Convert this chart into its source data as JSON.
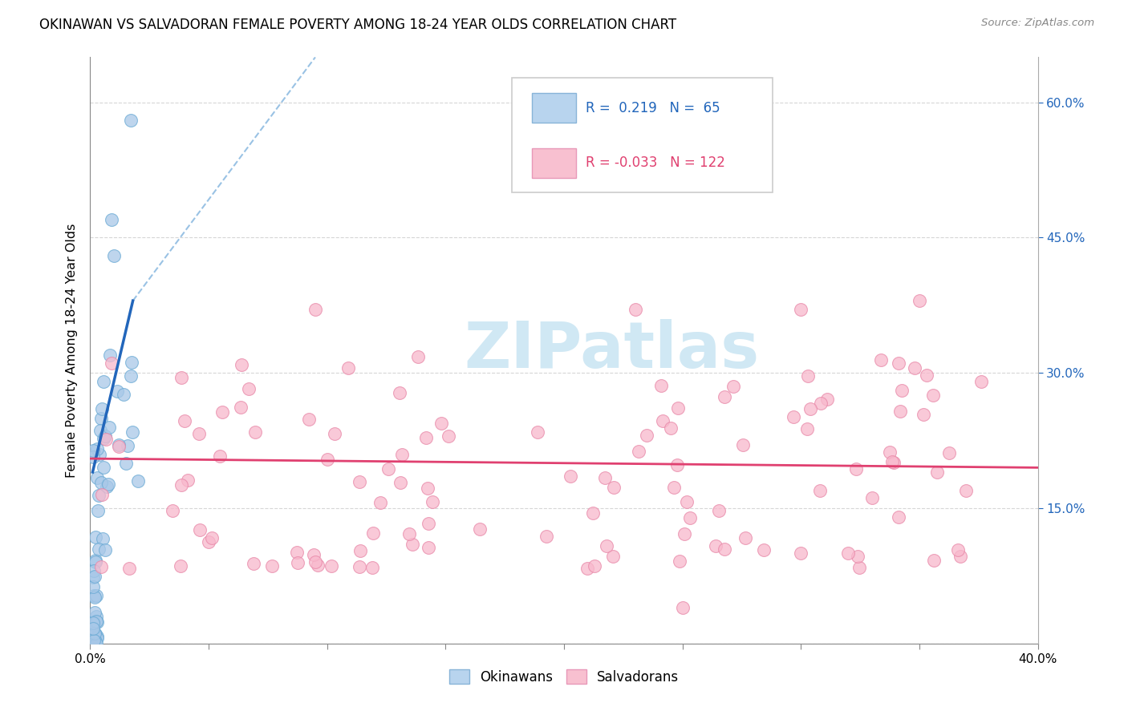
{
  "title": "OKINAWAN VS SALVADORAN FEMALE POVERTY AMONG 18-24 YEAR OLDS CORRELATION CHART",
  "source": "Source: ZipAtlas.com",
  "ylabel": "Female Poverty Among 18-24 Year Olds",
  "xlim": [
    0.0,
    0.4
  ],
  "ylim": [
    0.0,
    0.65
  ],
  "blue_fill": "#a8c8e8",
  "blue_edge": "#6aaad4",
  "pink_fill": "#f8b8cc",
  "pink_edge": "#e888a8",
  "blue_line_color": "#2266bb",
  "pink_line_color": "#e04070",
  "blue_dash_color": "#88b8e0",
  "r1": "0.219",
  "n1": "65",
  "r2": "-0.033",
  "n2": "122",
  "legend_text_blue": "#2266bb",
  "legend_text_pink": "#e04070",
  "okinawan_label": "Okinawans",
  "salvadoran_label": "Salvadorans",
  "watermark_color": "#d0e8f4",
  "grid_color": "#cccccc",
  "right_axis_color": "#2266bb"
}
